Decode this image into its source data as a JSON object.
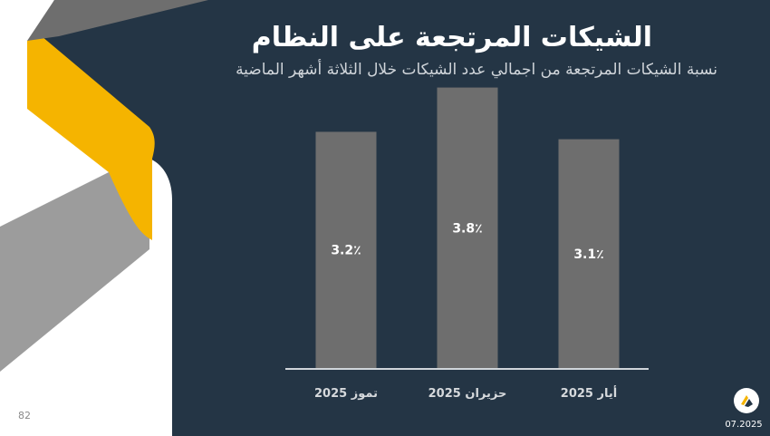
{
  "slide": {
    "title": "الشيكات المرتجعة على النظام",
    "subtitle": "نسبة الشيكات المرتجعة من اجمالي عدد الشيكات خلال الثلاثة أشهر الماضية",
    "page_number": "82",
    "date": "07.2025"
  },
  "colors": {
    "background": "#243545",
    "bar": "#6e6e6e",
    "accent_yellow": "#f5b400",
    "accent_gray": "#9c9c9c"
  },
  "chart_data": {
    "type": "bar",
    "categories": [
      "تموز 2025",
      "حزيران 2025",
      "أيار 2025"
    ],
    "values": [
      3.2,
      3.8,
      3.1
    ],
    "value_labels": [
      "3.2٪",
      "3.8٪",
      "3.1٪"
    ],
    "ylim": [
      0,
      4.2
    ],
    "grid": false,
    "legend": "none"
  }
}
